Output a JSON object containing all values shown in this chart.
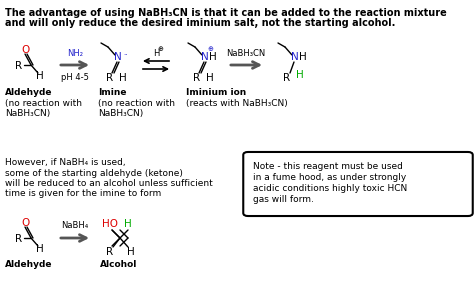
{
  "bg_color": "#ffffff",
  "title1": "The advantage of using NaBH₃CN is that it can be added to the reaction mixture",
  "title2": "and will only reduce the desired iminium salt, not the starting alcohol.",
  "btm1": "However, if NaBH₄ is used,",
  "btm2": "some of the starting aldehyde (ketone)",
  "btm3": "will be reduced to an alcohol unless sufficient",
  "btm4": "time is given for the imine to form",
  "note1": "Note - this reagent must be used",
  "note2": "in a fume hood, as under strongly",
  "note3": "acidic conditions highly toxic HCN",
  "note4": "gas will form.",
  "lbl_aldehyde": "Aldehyde",
  "lbl_imine": "Imine",
  "lbl_iminium": "Iminium ion",
  "lbl_no1": "(no reaction with",
  "lbl_no2": "NaBH₃CN)",
  "lbl_reacts": "(reacts with NaBH₃CN)",
  "lbl_ald2": "Aldehyde",
  "lbl_alc": "Alcohol",
  "col_O": "#dd0000",
  "col_N_blue": "#2222cc",
  "col_H_green": "#00aa00",
  "col_HO_red": "#dd0000",
  "col_arrow_dark": "#555555",
  "col_arrow_orange": "#cc6600",
  "fs_title": 7.0,
  "fs_body": 6.5,
  "fs_small": 6.0,
  "fs_struct": 7.5
}
